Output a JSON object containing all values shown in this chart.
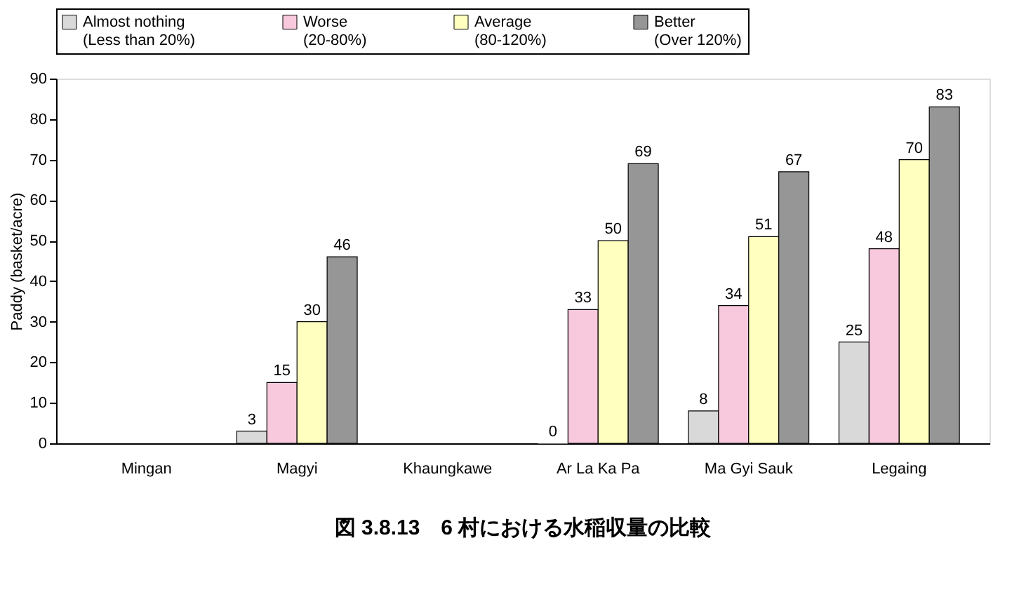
{
  "chart_data": {
    "type": "bar",
    "title": "図 3.8.13　6 村における水稲収量の比較",
    "ylabel": "Paddy (basket/acre)",
    "categories": [
      "Mingan",
      "Magyi",
      "Khaungkawe",
      "Ar La Ka Pa",
      "Ma Gyi Sauk",
      "Legaing"
    ],
    "series": [
      {
        "name": "Almost nothing\n(Less than 20%)",
        "color": "#d9d9d9",
        "values": [
          null,
          3,
          null,
          0,
          8,
          25
        ]
      },
      {
        "name": "Worse\n(20-80%)",
        "color": "#f8c8dc",
        "values": [
          null,
          15,
          null,
          33,
          34,
          48
        ]
      },
      {
        "name": "Average\n(80-120%)",
        "color": "#ffffc0",
        "values": [
          null,
          30,
          null,
          50,
          51,
          70
        ]
      },
      {
        "name": "Better\n(Over 120%)",
        "color": "#969696",
        "values": [
          null,
          46,
          null,
          69,
          67,
          83
        ]
      }
    ],
    "ylim": [
      0,
      90
    ],
    "yticks": [
      0,
      10,
      20,
      30,
      40,
      50,
      60,
      70,
      80,
      90
    ],
    "grid": false,
    "legend": "top",
    "data_labels": true
  }
}
